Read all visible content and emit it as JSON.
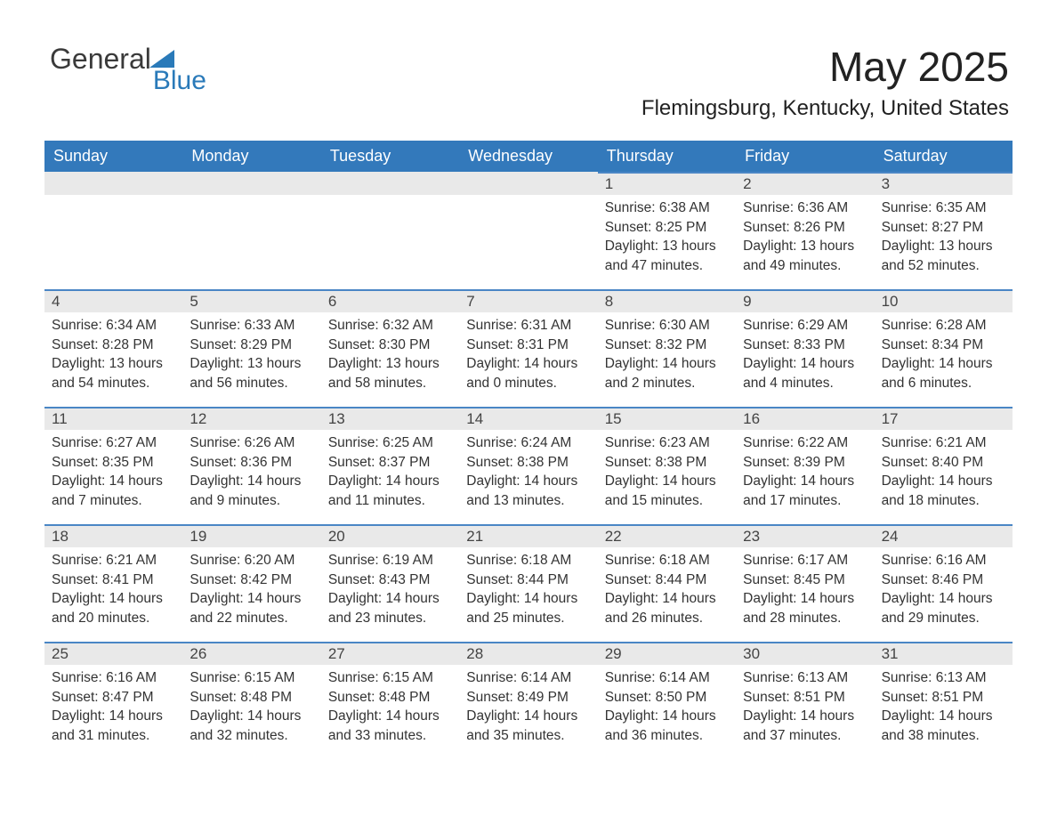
{
  "logo": {
    "text1": "General",
    "text2": "Blue"
  },
  "title": "May 2025",
  "location": "Flemingsburg, Kentucky, United States",
  "colors": {
    "header_bg": "#3379bb",
    "header_text": "#ffffff",
    "date_bar_bg": "#e9e9e9",
    "date_bar_border": "#4a86c5",
    "text": "#333333",
    "logo_blue": "#2a7ab9"
  },
  "day_headers": [
    "Sunday",
    "Monday",
    "Tuesday",
    "Wednesday",
    "Thursday",
    "Friday",
    "Saturday"
  ],
  "weeks": [
    [
      {
        "date": "",
        "empty": true
      },
      {
        "date": "",
        "empty": true
      },
      {
        "date": "",
        "empty": true
      },
      {
        "date": "",
        "empty": true
      },
      {
        "date": "1",
        "sunrise": "Sunrise: 6:38 AM",
        "sunset": "Sunset: 8:25 PM",
        "day1": "Daylight: 13 hours",
        "day2": "and 47 minutes."
      },
      {
        "date": "2",
        "sunrise": "Sunrise: 6:36 AM",
        "sunset": "Sunset: 8:26 PM",
        "day1": "Daylight: 13 hours",
        "day2": "and 49 minutes."
      },
      {
        "date": "3",
        "sunrise": "Sunrise: 6:35 AM",
        "sunset": "Sunset: 8:27 PM",
        "day1": "Daylight: 13 hours",
        "day2": "and 52 minutes."
      }
    ],
    [
      {
        "date": "4",
        "sunrise": "Sunrise: 6:34 AM",
        "sunset": "Sunset: 8:28 PM",
        "day1": "Daylight: 13 hours",
        "day2": "and 54 minutes."
      },
      {
        "date": "5",
        "sunrise": "Sunrise: 6:33 AM",
        "sunset": "Sunset: 8:29 PM",
        "day1": "Daylight: 13 hours",
        "day2": "and 56 minutes."
      },
      {
        "date": "6",
        "sunrise": "Sunrise: 6:32 AM",
        "sunset": "Sunset: 8:30 PM",
        "day1": "Daylight: 13 hours",
        "day2": "and 58 minutes."
      },
      {
        "date": "7",
        "sunrise": "Sunrise: 6:31 AM",
        "sunset": "Sunset: 8:31 PM",
        "day1": "Daylight: 14 hours",
        "day2": "and 0 minutes."
      },
      {
        "date": "8",
        "sunrise": "Sunrise: 6:30 AM",
        "sunset": "Sunset: 8:32 PM",
        "day1": "Daylight: 14 hours",
        "day2": "and 2 minutes."
      },
      {
        "date": "9",
        "sunrise": "Sunrise: 6:29 AM",
        "sunset": "Sunset: 8:33 PM",
        "day1": "Daylight: 14 hours",
        "day2": "and 4 minutes."
      },
      {
        "date": "10",
        "sunrise": "Sunrise: 6:28 AM",
        "sunset": "Sunset: 8:34 PM",
        "day1": "Daylight: 14 hours",
        "day2": "and 6 minutes."
      }
    ],
    [
      {
        "date": "11",
        "sunrise": "Sunrise: 6:27 AM",
        "sunset": "Sunset: 8:35 PM",
        "day1": "Daylight: 14 hours",
        "day2": "and 7 minutes."
      },
      {
        "date": "12",
        "sunrise": "Sunrise: 6:26 AM",
        "sunset": "Sunset: 8:36 PM",
        "day1": "Daylight: 14 hours",
        "day2": "and 9 minutes."
      },
      {
        "date": "13",
        "sunrise": "Sunrise: 6:25 AM",
        "sunset": "Sunset: 8:37 PM",
        "day1": "Daylight: 14 hours",
        "day2": "and 11 minutes."
      },
      {
        "date": "14",
        "sunrise": "Sunrise: 6:24 AM",
        "sunset": "Sunset: 8:38 PM",
        "day1": "Daylight: 14 hours",
        "day2": "and 13 minutes."
      },
      {
        "date": "15",
        "sunrise": "Sunrise: 6:23 AM",
        "sunset": "Sunset: 8:38 PM",
        "day1": "Daylight: 14 hours",
        "day2": "and 15 minutes."
      },
      {
        "date": "16",
        "sunrise": "Sunrise: 6:22 AM",
        "sunset": "Sunset: 8:39 PM",
        "day1": "Daylight: 14 hours",
        "day2": "and 17 minutes."
      },
      {
        "date": "17",
        "sunrise": "Sunrise: 6:21 AM",
        "sunset": "Sunset: 8:40 PM",
        "day1": "Daylight: 14 hours",
        "day2": "and 18 minutes."
      }
    ],
    [
      {
        "date": "18",
        "sunrise": "Sunrise: 6:21 AM",
        "sunset": "Sunset: 8:41 PM",
        "day1": "Daylight: 14 hours",
        "day2": "and 20 minutes."
      },
      {
        "date": "19",
        "sunrise": "Sunrise: 6:20 AM",
        "sunset": "Sunset: 8:42 PM",
        "day1": "Daylight: 14 hours",
        "day2": "and 22 minutes."
      },
      {
        "date": "20",
        "sunrise": "Sunrise: 6:19 AM",
        "sunset": "Sunset: 8:43 PM",
        "day1": "Daylight: 14 hours",
        "day2": "and 23 minutes."
      },
      {
        "date": "21",
        "sunrise": "Sunrise: 6:18 AM",
        "sunset": "Sunset: 8:44 PM",
        "day1": "Daylight: 14 hours",
        "day2": "and 25 minutes."
      },
      {
        "date": "22",
        "sunrise": "Sunrise: 6:18 AM",
        "sunset": "Sunset: 8:44 PM",
        "day1": "Daylight: 14 hours",
        "day2": "and 26 minutes."
      },
      {
        "date": "23",
        "sunrise": "Sunrise: 6:17 AM",
        "sunset": "Sunset: 8:45 PM",
        "day1": "Daylight: 14 hours",
        "day2": "and 28 minutes."
      },
      {
        "date": "24",
        "sunrise": "Sunrise: 6:16 AM",
        "sunset": "Sunset: 8:46 PM",
        "day1": "Daylight: 14 hours",
        "day2": "and 29 minutes."
      }
    ],
    [
      {
        "date": "25",
        "sunrise": "Sunrise: 6:16 AM",
        "sunset": "Sunset: 8:47 PM",
        "day1": "Daylight: 14 hours",
        "day2": "and 31 minutes."
      },
      {
        "date": "26",
        "sunrise": "Sunrise: 6:15 AM",
        "sunset": "Sunset: 8:48 PM",
        "day1": "Daylight: 14 hours",
        "day2": "and 32 minutes."
      },
      {
        "date": "27",
        "sunrise": "Sunrise: 6:15 AM",
        "sunset": "Sunset: 8:48 PM",
        "day1": "Daylight: 14 hours",
        "day2": "and 33 minutes."
      },
      {
        "date": "28",
        "sunrise": "Sunrise: 6:14 AM",
        "sunset": "Sunset: 8:49 PM",
        "day1": "Daylight: 14 hours",
        "day2": "and 35 minutes."
      },
      {
        "date": "29",
        "sunrise": "Sunrise: 6:14 AM",
        "sunset": "Sunset: 8:50 PM",
        "day1": "Daylight: 14 hours",
        "day2": "and 36 minutes."
      },
      {
        "date": "30",
        "sunrise": "Sunrise: 6:13 AM",
        "sunset": "Sunset: 8:51 PM",
        "day1": "Daylight: 14 hours",
        "day2": "and 37 minutes."
      },
      {
        "date": "31",
        "sunrise": "Sunrise: 6:13 AM",
        "sunset": "Sunset: 8:51 PM",
        "day1": "Daylight: 14 hours",
        "day2": "and 38 minutes."
      }
    ]
  ]
}
